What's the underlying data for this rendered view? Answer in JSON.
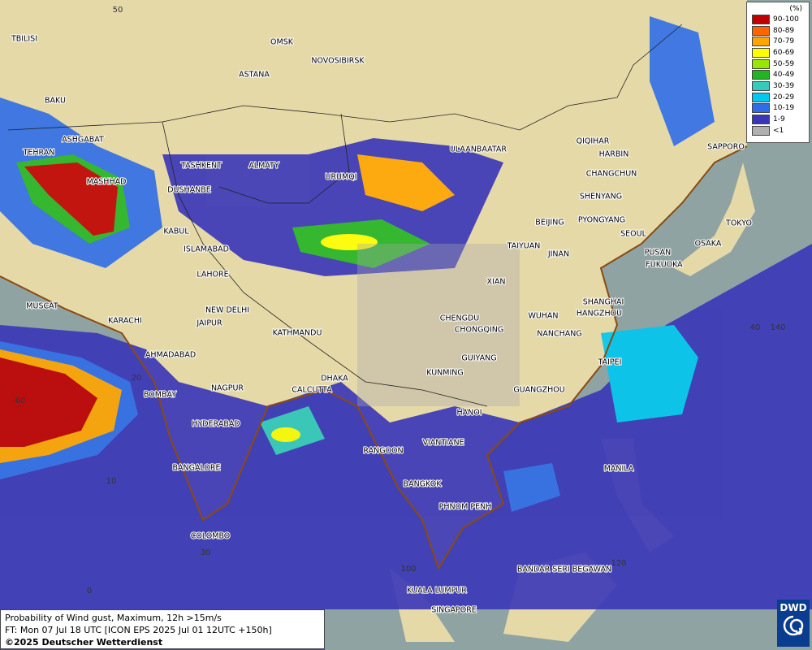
{
  "legend": {
    "title": "(%)",
    "items": [
      {
        "label": "90-100",
        "color": "#c00000"
      },
      {
        "label": "80-89",
        "color": "#ff6600"
      },
      {
        "label": "70-79",
        "color": "#ffa500"
      },
      {
        "label": "60-69",
        "color": "#ffff00"
      },
      {
        "label": "50-59",
        "color": "#99e600"
      },
      {
        "label": "40-49",
        "color": "#22b422"
      },
      {
        "label": "30-39",
        "color": "#33ccbb"
      },
      {
        "label": "20-29",
        "color": "#00c8f0"
      },
      {
        "label": "10-19",
        "color": "#2f6de8"
      },
      {
        "label": "1-9",
        "color": "#3a36b8"
      },
      {
        "label": "<1",
        "color": "#b0b0b0"
      }
    ]
  },
  "cities": [
    "OMSK",
    "NOVOSIBIRSK",
    "ASTANA",
    "TBILISI",
    "BAKU",
    "TEHRAN",
    "ASHGABAT",
    "MASHHAD",
    "TASHKENT",
    "ALMATY",
    "URUMQI",
    "DUSHANBE",
    "KABUL",
    "ISLAMABAD",
    "LAHORE",
    "MUSCAT",
    "KARACHI",
    "NEW DELHI",
    "JAIPUR",
    "AHMADABAD",
    "KATHMANDU",
    "DHAKA",
    "CALCUTTA",
    "NAGPUR",
    "BOMBAY",
    "HYDERABAD",
    "BANGALORE",
    "COLOMBO",
    "ULAANBAATAR",
    "QIQIHAR",
    "HARBIN",
    "CHANGCHUN",
    "SHENYANG",
    "BEIJING",
    "PYONGYANG",
    "SEOUL",
    "TAIYUAN",
    "JINAN",
    "PUSAN",
    "FUKUOKA",
    "OSAKA",
    "TOKYO",
    "SAPPORO",
    "XIAN",
    "SHANGHAI",
    "HANGZHOU",
    "CHENGDU",
    "WUHAN",
    "CHONGQING",
    "NANCHANG",
    "GUIYANG",
    "TAIPEI",
    "KUNMING",
    "GUANGZHOU",
    "HANOI",
    "VIANTIANE",
    "RANGOON",
    "MANILA",
    "BANGKOK",
    "PHNOM PENH",
    "BANDAR SERI BEGAWAN",
    "KUALA LUMPUR",
    "SINGAPORE"
  ],
  "grid_labels": [
    "50",
    "40",
    "60",
    "20",
    "10",
    "30",
    "0",
    "100",
    "120",
    "140"
  ],
  "footer": {
    "product": "Probability of Wind gust, Maximum, 12h >15m/s",
    "forecast": "FT: Mon 07 Jul 18 UTC [ICON EPS 2025 Jul 01 12UTC +150h]",
    "copyright": "©2025 Deutscher Wetterdienst"
  },
  "logo": "DWD"
}
